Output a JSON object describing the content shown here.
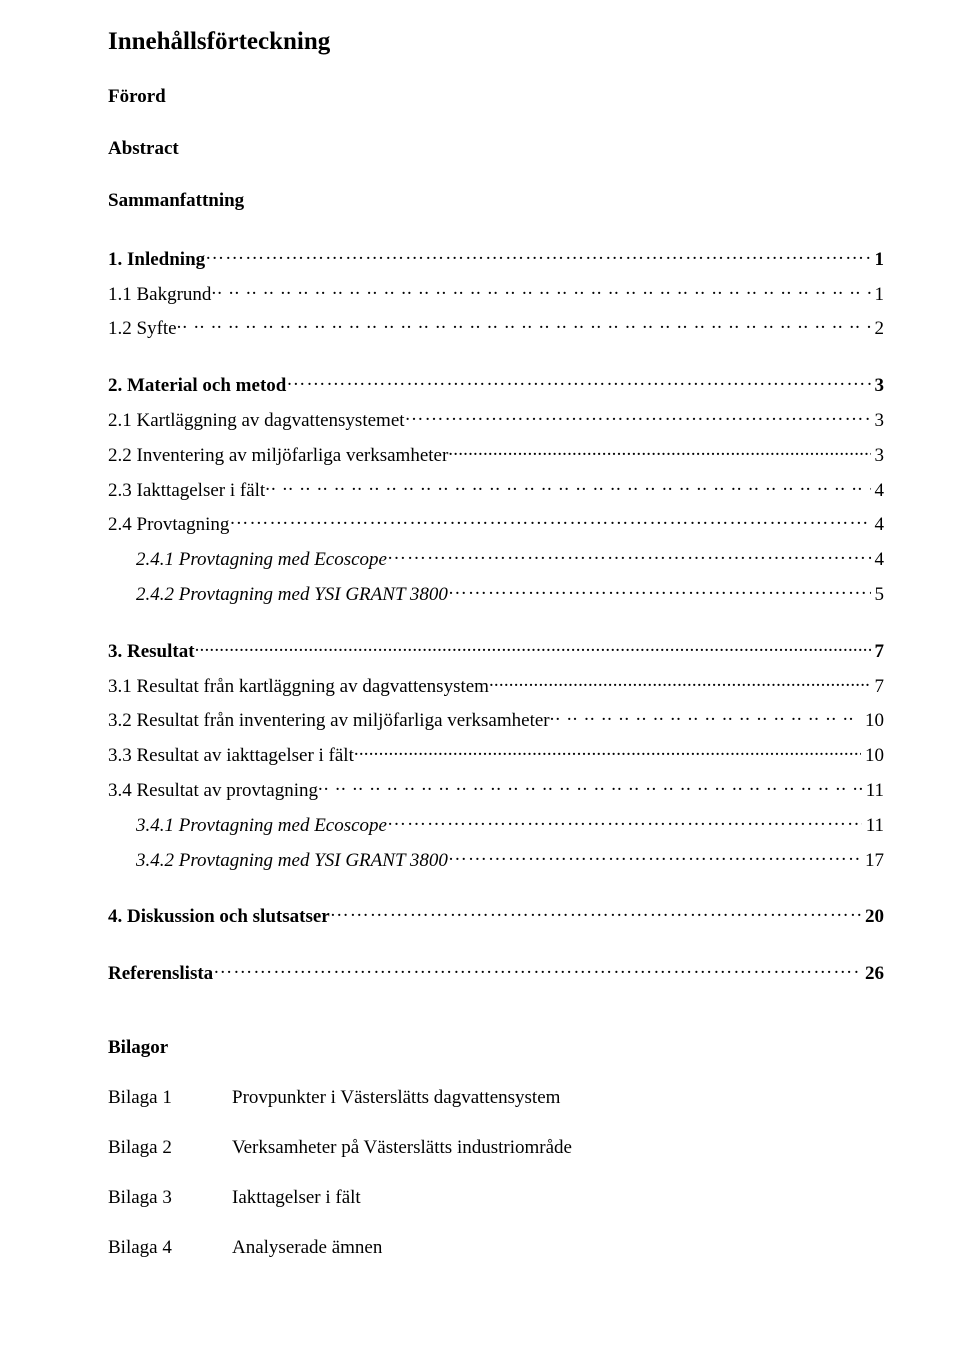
{
  "title": "Innehållsförteckning",
  "preface": [
    "Förord",
    "Abstract",
    "Sammanfattning"
  ],
  "toc": [
    {
      "label": "1. Inledning",
      "page": "1",
      "bold": true,
      "italic": false,
      "indent": 0,
      "leader": "ellipsis"
    },
    {
      "label": "1.1 Bakgrund",
      "page": "1",
      "bold": false,
      "italic": false,
      "indent": 0,
      "leader": "dots-spaced",
      "gap": "sm"
    },
    {
      "label": "1.2 Syfte",
      "page": "2",
      "bold": false,
      "italic": false,
      "indent": 0,
      "leader": "dots-spaced"
    },
    {
      "label": "2. Material och metod",
      "page": "3",
      "bold": true,
      "italic": false,
      "indent": 0,
      "leader": "ellipsis",
      "gap": "lg"
    },
    {
      "label": "2.1 Kartläggning av dagvattensystemet",
      "page": "3",
      "bold": false,
      "italic": false,
      "indent": 0,
      "leader": "ellipsis",
      "gap": "sm"
    },
    {
      "label": "2.2 Inventering av miljöfarliga verksamheter",
      "page": "3",
      "bold": false,
      "italic": false,
      "indent": 0,
      "leader": "dots-small"
    },
    {
      "label": "2.3 Iakttagelser i fält",
      "page": "4",
      "bold": false,
      "italic": false,
      "indent": 0,
      "leader": "dots-spaced"
    },
    {
      "label": "2.4 Provtagning",
      "page": "4",
      "bold": false,
      "italic": false,
      "indent": 0,
      "leader": "ellipsis"
    },
    {
      "label": "2.4.1 Provtagning med Ecoscope",
      "page": "4",
      "bold": false,
      "italic": true,
      "indent": 1,
      "leader": "ellipsis"
    },
    {
      "label": "2.4.2 Provtagning med YSI GRANT 3800",
      "page": "5",
      "bold": false,
      "italic": true,
      "indent": 1,
      "leader": "ellipsis"
    },
    {
      "label": "3. Resultat",
      "page": "7",
      "bold": true,
      "italic": false,
      "indent": 0,
      "leader": "dots-small",
      "gap": "lg"
    },
    {
      "label": "3.1 Resultat från kartläggning av dagvattensystem",
      "page": "7",
      "bold": false,
      "italic": false,
      "indent": 0,
      "leader": "dots-small",
      "gap": "sm"
    },
    {
      "label": "3.2 Resultat från inventering av miljöfarliga verksamheter",
      "page": "10",
      "bold": false,
      "italic": false,
      "indent": 0,
      "leader": "dots-spaced"
    },
    {
      "label": "3.3 Resultat av iakttagelser i fält",
      "page": "10",
      "bold": false,
      "italic": false,
      "indent": 0,
      "leader": "dots-small"
    },
    {
      "label": "3.4 Resultat av provtagning",
      "page": "11",
      "bold": false,
      "italic": false,
      "indent": 0,
      "leader": "dots-spaced"
    },
    {
      "label": "3.4.1 Provtagning med Ecoscope",
      "page": "11",
      "bold": false,
      "italic": true,
      "indent": 1,
      "leader": "ellipsis"
    },
    {
      "label": "3.4.2 Provtagning med YSI GRANT 3800",
      "page": "17",
      "bold": false,
      "italic": true,
      "indent": 1,
      "leader": "ellipsis"
    },
    {
      "label": "4. Diskussion och slutsatser",
      "page": "20",
      "bold": true,
      "italic": false,
      "indent": 0,
      "leader": "ellipsis",
      "gap": "lg"
    },
    {
      "label": "Referenslista",
      "page": "26",
      "bold": true,
      "italic": false,
      "indent": 0,
      "leader": "ellipsis",
      "gap": "lg"
    }
  ],
  "bilagor": {
    "heading": "Bilagor",
    "items": [
      {
        "label": "Bilaga 1",
        "desc": "Provpunkter i Västerslätts dagvattensystem"
      },
      {
        "label": "Bilaga 2",
        "desc": "Verksamheter på Västerslätts industriområde"
      },
      {
        "label": "Bilaga 3",
        "desc": "Iakttagelser i fält"
      },
      {
        "label": "Bilaga 4",
        "desc": "Analyserade ämnen"
      }
    ]
  }
}
